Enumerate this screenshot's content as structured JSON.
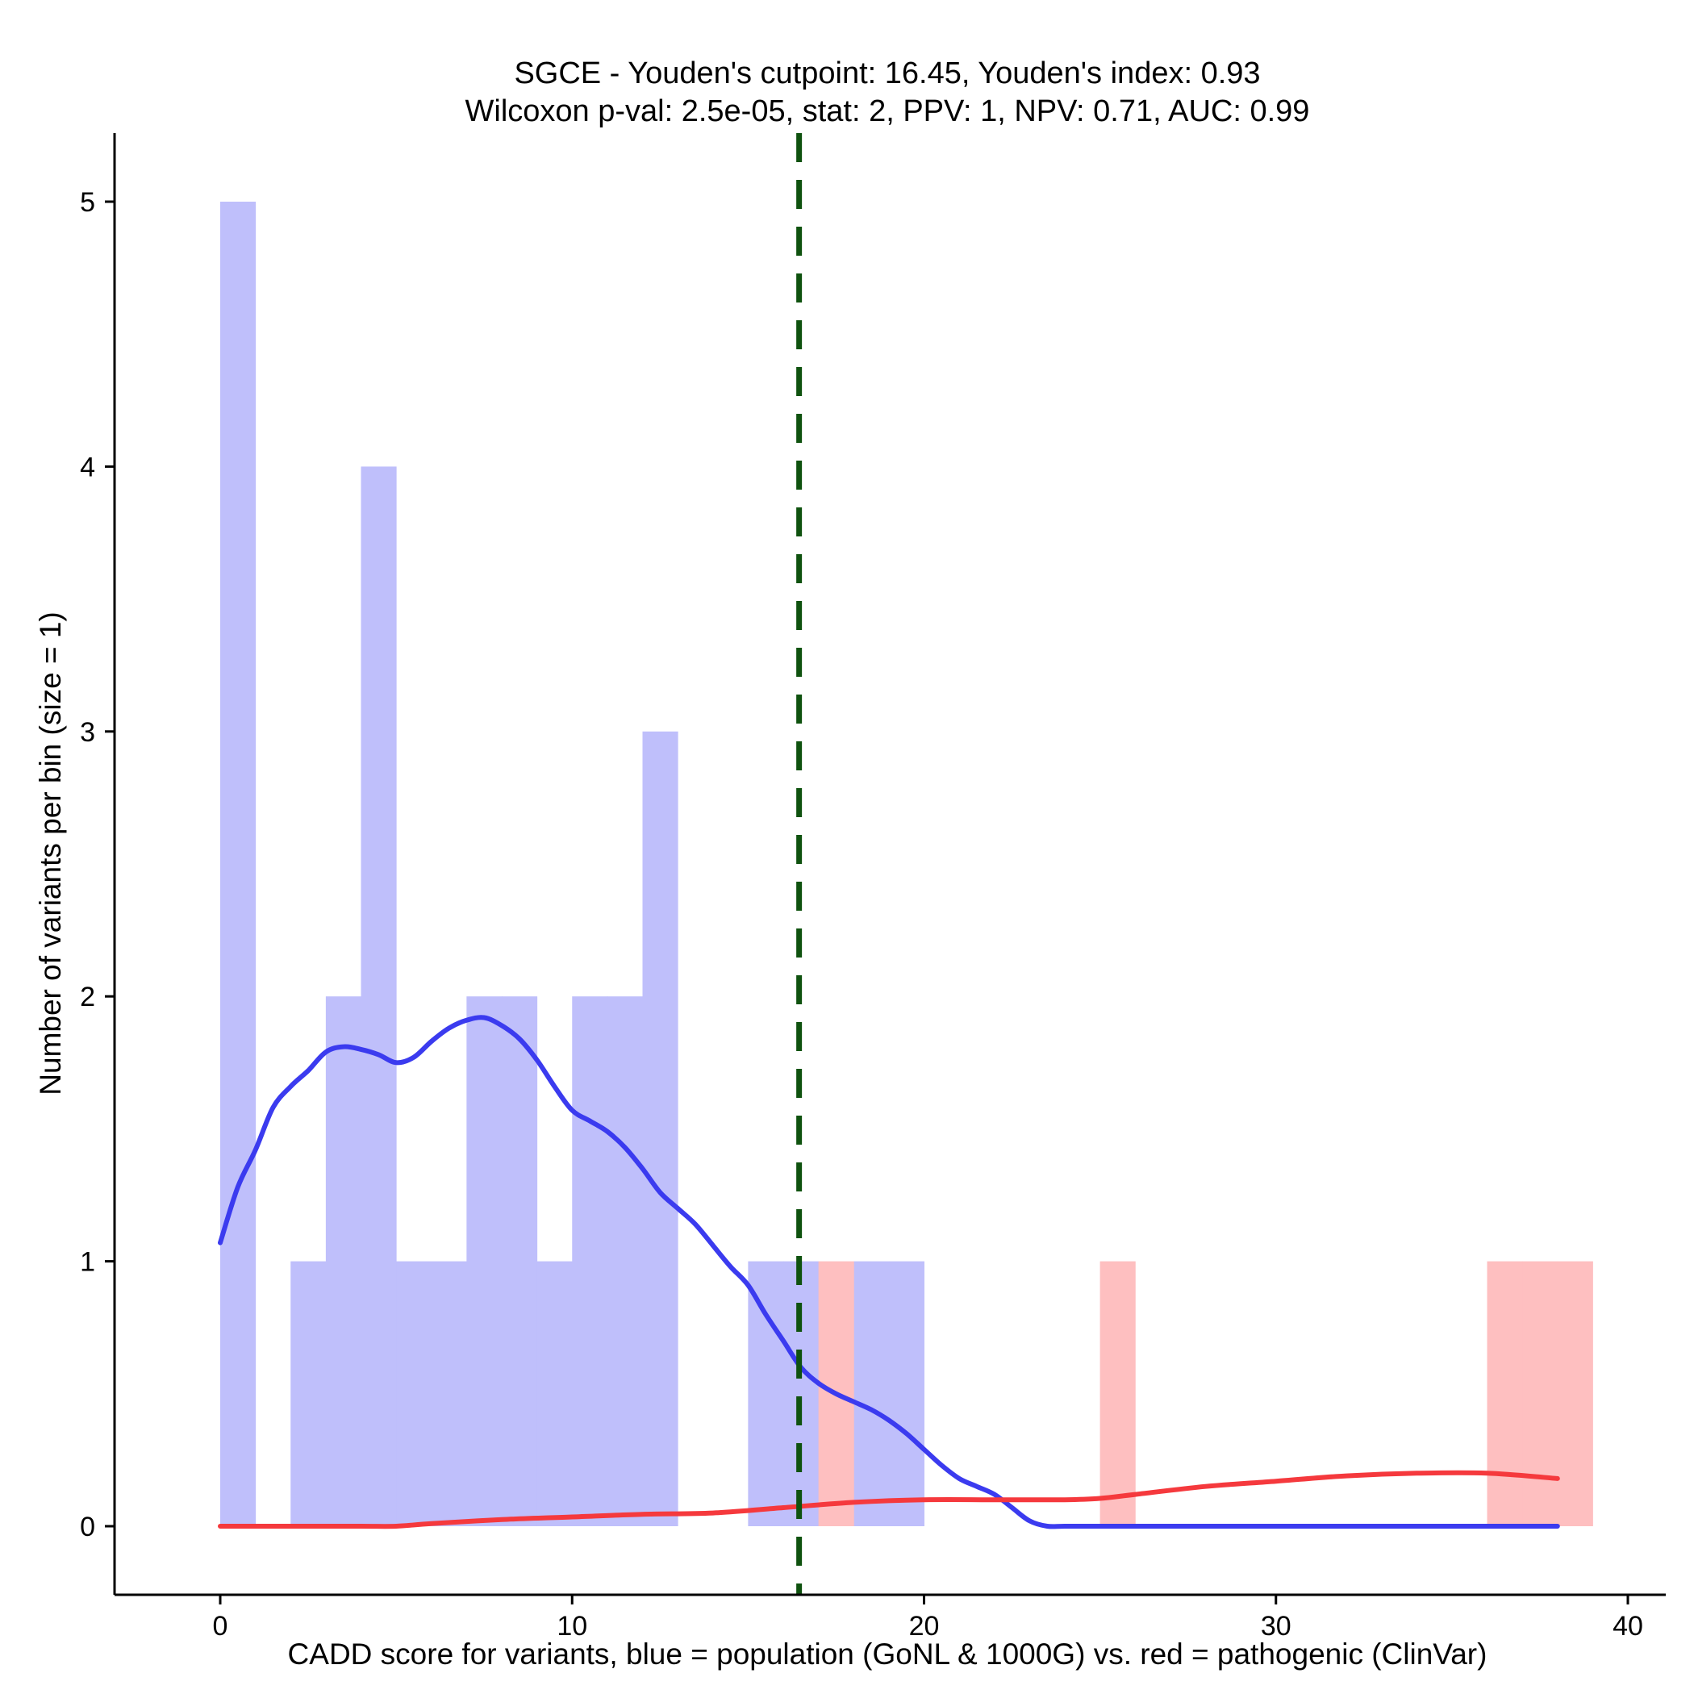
{
  "chart_data": {
    "type": "histogram",
    "title_line1": "SGCE - Youden's cutpoint: 16.45, Youden's index: 0.93",
    "title_line2": "Wilcoxon p-val: 2.5e-05, stat: 2, PPV: 1, NPV: 0.71, AUC: 0.99",
    "xlabel": "CADD score for variants, blue = population (GoNL & 1000G) vs. red = pathogenic (ClinVar)",
    "ylabel": "Number of variants per bin (size = 1)",
    "xlim": [
      -3,
      40.9
    ],
    "ylim": [
      -0.25,
      5.25
    ],
    "xticks": [
      0,
      10,
      20,
      30,
      40
    ],
    "yticks": [
      0,
      1,
      2,
      3,
      4,
      5
    ],
    "cutpoint": 16.45,
    "colors": {
      "population_bar": "#bfbffb",
      "pathogenic_bar": "#febfc0",
      "population_line": "#3b3bef",
      "pathogenic_line": "#f5393d",
      "cutpoint_line": "#0f520f"
    },
    "series": [
      {
        "name": "population",
        "bins": [
          {
            "x0": 0,
            "x1": 1,
            "count": 5
          },
          {
            "x0": 2,
            "x1": 3,
            "count": 1
          },
          {
            "x0": 3,
            "x1": 4,
            "count": 2
          },
          {
            "x0": 4,
            "x1": 5,
            "count": 4
          },
          {
            "x0": 5,
            "x1": 6,
            "count": 1
          },
          {
            "x0": 6,
            "x1": 7,
            "count": 1
          },
          {
            "x0": 7,
            "x1": 8,
            "count": 2
          },
          {
            "x0": 8,
            "x1": 9,
            "count": 2
          },
          {
            "x0": 9,
            "x1": 10,
            "count": 1
          },
          {
            "x0": 10,
            "x1": 11,
            "count": 2
          },
          {
            "x0": 11,
            "x1": 12,
            "count": 2
          },
          {
            "x0": 12,
            "x1": 13,
            "count": 3
          },
          {
            "x0": 15,
            "x1": 16,
            "count": 1
          },
          {
            "x0": 16,
            "x1": 17,
            "count": 1
          },
          {
            "x0": 18,
            "x1": 19,
            "count": 1
          },
          {
            "x0": 19,
            "x1": 20,
            "count": 1
          }
        ],
        "density": [
          [
            0,
            1.07
          ],
          [
            0.5,
            1.28
          ],
          [
            1,
            1.42
          ],
          [
            1.5,
            1.58
          ],
          [
            2,
            1.66
          ],
          [
            2.5,
            1.72
          ],
          [
            3,
            1.79
          ],
          [
            3.5,
            1.81
          ],
          [
            4,
            1.8
          ],
          [
            4.5,
            1.78
          ],
          [
            5,
            1.75
          ],
          [
            5.5,
            1.77
          ],
          [
            6,
            1.83
          ],
          [
            6.5,
            1.88
          ],
          [
            7,
            1.91
          ],
          [
            7.5,
            1.92
          ],
          [
            8,
            1.89
          ],
          [
            8.5,
            1.84
          ],
          [
            9,
            1.76
          ],
          [
            9.5,
            1.66
          ],
          [
            10,
            1.57
          ],
          [
            10.5,
            1.53
          ],
          [
            11,
            1.49
          ],
          [
            11.5,
            1.43
          ],
          [
            12,
            1.35
          ],
          [
            12.5,
            1.26
          ],
          [
            13,
            1.2
          ],
          [
            13.5,
            1.14
          ],
          [
            14,
            1.06
          ],
          [
            14.5,
            0.98
          ],
          [
            15,
            0.91
          ],
          [
            15.5,
            0.8
          ],
          [
            16,
            0.7
          ],
          [
            16.5,
            0.6
          ],
          [
            17,
            0.54
          ],
          [
            17.5,
            0.5
          ],
          [
            18,
            0.47
          ],
          [
            18.5,
            0.44
          ],
          [
            19,
            0.4
          ],
          [
            19.5,
            0.35
          ],
          [
            20,
            0.29
          ],
          [
            20.5,
            0.23
          ],
          [
            21,
            0.18
          ],
          [
            21.5,
            0.15
          ],
          [
            22,
            0.12
          ],
          [
            22.5,
            0.07
          ],
          [
            23,
            0.02
          ],
          [
            23.5,
            0.0
          ],
          [
            24,
            0.0
          ],
          [
            25,
            0.0
          ],
          [
            30,
            0.0
          ],
          [
            35,
            0.0
          ],
          [
            38,
            0.0
          ]
        ]
      },
      {
        "name": "pathogenic",
        "bins": [
          {
            "x0": 17,
            "x1": 18,
            "count": 1
          },
          {
            "x0": 25,
            "x1": 26,
            "count": 1
          },
          {
            "x0": 36,
            "x1": 37,
            "count": 1
          },
          {
            "x0": 37,
            "x1": 38,
            "count": 1
          },
          {
            "x0": 38,
            "x1": 39,
            "count": 1
          }
        ],
        "density": [
          [
            0,
            0.0
          ],
          [
            2,
            0.0
          ],
          [
            4,
            0.0
          ],
          [
            5,
            0.0
          ],
          [
            6,
            0.01
          ],
          [
            8,
            0.025
          ],
          [
            10,
            0.035
          ],
          [
            12,
            0.045
          ],
          [
            14,
            0.05
          ],
          [
            16,
            0.07
          ],
          [
            18,
            0.09
          ],
          [
            20,
            0.1
          ],
          [
            22,
            0.1
          ],
          [
            24,
            0.1
          ],
          [
            25,
            0.105
          ],
          [
            26,
            0.12
          ],
          [
            28,
            0.15
          ],
          [
            30,
            0.17
          ],
          [
            32,
            0.19
          ],
          [
            34,
            0.2
          ],
          [
            36,
            0.2
          ],
          [
            38,
            0.18
          ]
        ]
      }
    ]
  }
}
